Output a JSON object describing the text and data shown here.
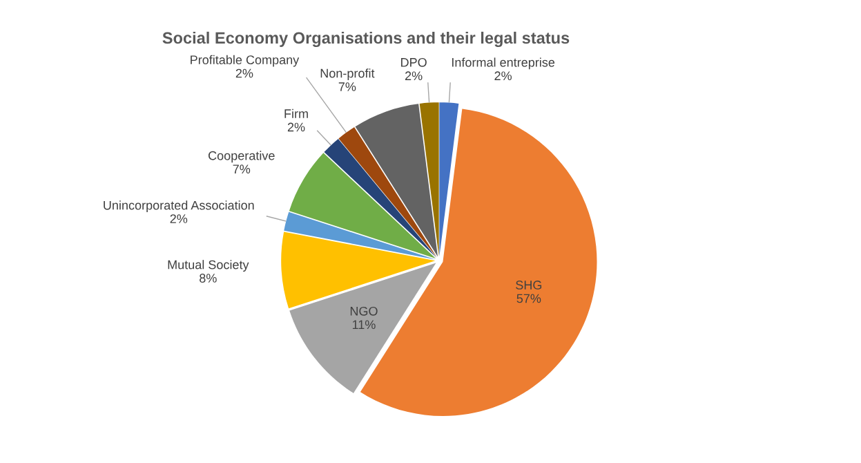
{
  "chart_data": {
    "type": "pie",
    "title": "Social Economy Organisations and their legal status",
    "categories": [
      "Informal entreprise",
      "SHG",
      "NGO",
      "Mutual Society",
      "Unincorporated Association",
      "Cooperative",
      "Firm",
      "Profitable Company",
      "Non-profit",
      "DPO"
    ],
    "values": [
      2,
      57,
      11,
      8,
      2,
      7,
      2,
      2,
      7,
      2
    ],
    "value_labels": [
      "2%",
      "57%",
      "11%",
      "8%",
      "2%",
      "7%",
      "2%",
      "2%",
      "7%",
      "2%"
    ],
    "colors": [
      "#4472c4",
      "#ed7d31",
      "#a5a5a5",
      "#ffc000",
      "#5b9bd5",
      "#70ad47",
      "#264478",
      "#9e480e",
      "#636363",
      "#997300"
    ]
  }
}
